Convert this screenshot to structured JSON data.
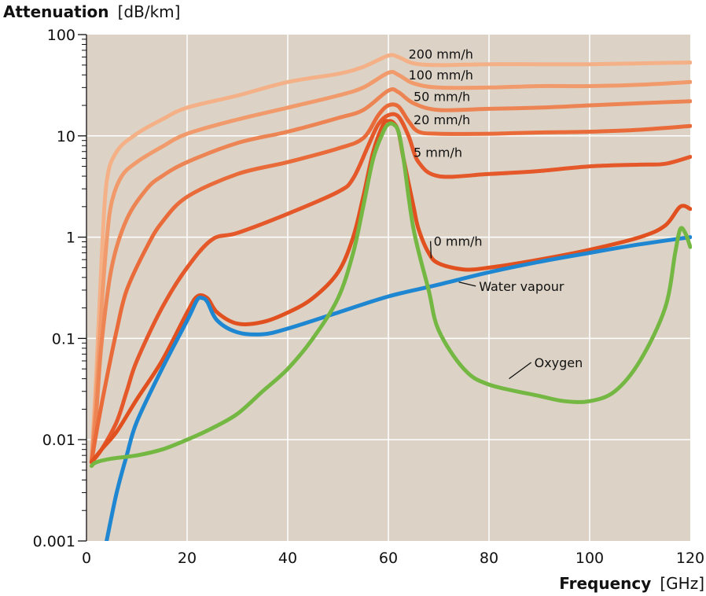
{
  "chart_data": {
    "type": "line",
    "y_scale": "log",
    "xlabel": {
      "bold": "Frequency",
      "unit": "[GHz]"
    },
    "ylabel": {
      "bold": "Attenuation",
      "unit": "[dB/km]"
    },
    "xlim": [
      0,
      120
    ],
    "ylim": [
      0.001,
      100
    ],
    "x_ticks": [
      "0",
      "20",
      "40",
      "60",
      "80",
      "100",
      "120"
    ],
    "y_ticks": [
      "0.001",
      "0.01",
      "0.1",
      "1",
      "10",
      "100"
    ],
    "grid": true,
    "colors": {
      "plot_bg": "#dcd3c6",
      "grid": "#ffffff",
      "rain_200": "#f4b188",
      "rain_100": "#f19a6c",
      "rain_50": "#ed8454",
      "rain_20": "#e96b3a",
      "rain_5": "#e4582a",
      "rain_0": "#e1501f",
      "oxygen": "#74b843",
      "water_vapour": "#1f87d1"
    },
    "series": [
      {
        "name": "200 mm/h",
        "color_key": "rain_200",
        "label_at": [
          64,
          58
        ],
        "points": [
          [
            1,
            0.006
          ],
          [
            2,
            0.05
          ],
          [
            3,
            0.6
          ],
          [
            4,
            3.5
          ],
          [
            6,
            7
          ],
          [
            10,
            10.5
          ],
          [
            15,
            14.5
          ],
          [
            20,
            19
          ],
          [
            30,
            25
          ],
          [
            40,
            34
          ],
          [
            50,
            41
          ],
          [
            55,
            48
          ],
          [
            60,
            62
          ],
          [
            62,
            60
          ],
          [
            65,
            52
          ],
          [
            70,
            50
          ],
          [
            80,
            51
          ],
          [
            90,
            51
          ],
          [
            100,
            51
          ],
          [
            110,
            52
          ],
          [
            120,
            53
          ]
        ]
      },
      {
        "name": "100 mm/h",
        "color_key": "rain_100",
        "label_at": [
          64,
          36
        ],
        "points": [
          [
            1,
            0.006
          ],
          [
            2,
            0.03
          ],
          [
            3,
            0.2
          ],
          [
            4,
            0.9
          ],
          [
            5,
            2.2
          ],
          [
            7,
            4
          ],
          [
            10,
            5.5
          ],
          [
            15,
            7.8
          ],
          [
            20,
            10.5
          ],
          [
            30,
            14.5
          ],
          [
            40,
            19
          ],
          [
            50,
            25
          ],
          [
            55,
            30
          ],
          [
            60,
            42
          ],
          [
            62,
            40
          ],
          [
            65,
            33
          ],
          [
            70,
            30
          ],
          [
            80,
            30
          ],
          [
            90,
            31
          ],
          [
            100,
            31
          ],
          [
            110,
            32
          ],
          [
            120,
            34
          ]
        ]
      },
      {
        "name": "50 mm/h",
        "color_key": "rain_50",
        "label_at": [
          65,
          22
        ],
        "points": [
          [
            1,
            0.006
          ],
          [
            2,
            0.02
          ],
          [
            3,
            0.09
          ],
          [
            5,
            0.5
          ],
          [
            8,
            1.5
          ],
          [
            12,
            3
          ],
          [
            15,
            4
          ],
          [
            20,
            5.5
          ],
          [
            30,
            8.5
          ],
          [
            40,
            11
          ],
          [
            50,
            15
          ],
          [
            55,
            18
          ],
          [
            60,
            28
          ],
          [
            62,
            27
          ],
          [
            65,
            21
          ],
          [
            70,
            18
          ],
          [
            80,
            18.5
          ],
          [
            90,
            19
          ],
          [
            100,
            20
          ],
          [
            110,
            21
          ],
          [
            120,
            22
          ]
        ]
      },
      {
        "name": "20 mm/h",
        "color_key": "rain_20",
        "label_at": [
          65,
          13
        ],
        "points": [
          [
            1,
            0.006
          ],
          [
            2,
            0.012
          ],
          [
            4,
            0.04
          ],
          [
            6,
            0.12
          ],
          [
            8,
            0.3
          ],
          [
            12,
            0.8
          ],
          [
            15,
            1.4
          ],
          [
            20,
            2.5
          ],
          [
            30,
            4.2
          ],
          [
            40,
            5.5
          ],
          [
            50,
            7.5
          ],
          [
            55,
            9.5
          ],
          [
            58,
            16
          ],
          [
            60,
            20
          ],
          [
            62,
            19.5
          ],
          [
            64,
            14
          ],
          [
            66,
            11
          ],
          [
            70,
            10.5
          ],
          [
            80,
            10.5
          ],
          [
            90,
            10.8
          ],
          [
            100,
            11
          ],
          [
            110,
            11.5
          ],
          [
            120,
            12.5
          ]
        ]
      },
      {
        "name": "5 mm/h",
        "color_key": "rain_5",
        "label_at": [
          65,
          6.2
        ],
        "points": [
          [
            1,
            0.006
          ],
          [
            3,
            0.008
          ],
          [
            6,
            0.015
          ],
          [
            8,
            0.03
          ],
          [
            10,
            0.06
          ],
          [
            15,
            0.2
          ],
          [
            20,
            0.5
          ],
          [
            25,
            0.95
          ],
          [
            30,
            1.1
          ],
          [
            40,
            1.7
          ],
          [
            50,
            2.8
          ],
          [
            53,
            3.8
          ],
          [
            56,
            8
          ],
          [
            58,
            13
          ],
          [
            60,
            16
          ],
          [
            62,
            15.5
          ],
          [
            64,
            10
          ],
          [
            66,
            5.5
          ],
          [
            70,
            4
          ],
          [
            80,
            4.2
          ],
          [
            90,
            4.5
          ],
          [
            100,
            5
          ],
          [
            110,
            5.2
          ],
          [
            115,
            5.3
          ],
          [
            120,
            6.2
          ]
        ]
      },
      {
        "name": "0 mm/h",
        "color_key": "rain_0",
        "label_at": [
          69,
          0.82
        ],
        "leader_to": [
          68.5,
          0.62
        ],
        "points": [
          [
            1,
            0.006
          ],
          [
            3,
            0.008
          ],
          [
            6,
            0.012
          ],
          [
            10,
            0.025
          ],
          [
            15,
            0.06
          ],
          [
            20,
            0.18
          ],
          [
            22,
            0.26
          ],
          [
            24,
            0.25
          ],
          [
            26,
            0.18
          ],
          [
            30,
            0.14
          ],
          [
            35,
            0.145
          ],
          [
            40,
            0.18
          ],
          [
            45,
            0.25
          ],
          [
            50,
            0.45
          ],
          [
            53,
            1
          ],
          [
            55,
            2.5
          ],
          [
            57,
            7
          ],
          [
            59,
            13
          ],
          [
            60,
            14
          ],
          [
            61,
            13.5
          ],
          [
            62,
            11
          ],
          [
            63,
            6
          ],
          [
            65,
            2
          ],
          [
            66,
            1.2
          ],
          [
            68,
            0.7
          ],
          [
            70,
            0.55
          ],
          [
            75,
            0.48
          ],
          [
            80,
            0.5
          ],
          [
            90,
            0.6
          ],
          [
            100,
            0.75
          ],
          [
            110,
            1.0
          ],
          [
            115,
            1.3
          ],
          [
            118,
            2.0
          ],
          [
            120,
            1.9
          ]
        ]
      },
      {
        "name": "Water vapour",
        "color_key": "water_vapour",
        "label_at": [
          78,
          0.295
        ],
        "leader_to": [
          74,
          0.36
        ],
        "points": [
          [
            4,
            0.001
          ],
          [
            6,
            0.003
          ],
          [
            8,
            0.007
          ],
          [
            10,
            0.015
          ],
          [
            15,
            0.05
          ],
          [
            20,
            0.15
          ],
          [
            22,
            0.24
          ],
          [
            23,
            0.25
          ],
          [
            24,
            0.23
          ],
          [
            26,
            0.15
          ],
          [
            30,
            0.115
          ],
          [
            35,
            0.11
          ],
          [
            40,
            0.125
          ],
          [
            50,
            0.18
          ],
          [
            60,
            0.26
          ],
          [
            70,
            0.34
          ],
          [
            80,
            0.45
          ],
          [
            90,
            0.57
          ],
          [
            100,
            0.7
          ],
          [
            110,
            0.85
          ],
          [
            120,
            1.0
          ]
        ]
      },
      {
        "name": "Oxygen",
        "color_key": "oxygen",
        "label_at": [
          89,
          0.052
        ],
        "leader_to": [
          84,
          0.04
        ],
        "points": [
          [
            1,
            0.0055
          ],
          [
            2,
            0.006
          ],
          [
            5,
            0.0065
          ],
          [
            10,
            0.007
          ],
          [
            15,
            0.008
          ],
          [
            20,
            0.01
          ],
          [
            25,
            0.013
          ],
          [
            30,
            0.018
          ],
          [
            35,
            0.03
          ],
          [
            40,
            0.05
          ],
          [
            45,
            0.1
          ],
          [
            50,
            0.25
          ],
          [
            53,
            0.7
          ],
          [
            55,
            2
          ],
          [
            57,
            6
          ],
          [
            59,
            11
          ],
          [
            60,
            13
          ],
          [
            61,
            13
          ],
          [
            62,
            11
          ],
          [
            63,
            6
          ],
          [
            65,
            1.2
          ],
          [
            68,
            0.3
          ],
          [
            70,
            0.12
          ],
          [
            75,
            0.05
          ],
          [
            80,
            0.035
          ],
          [
            90,
            0.027
          ],
          [
            95,
            0.024
          ],
          [
            100,
            0.024
          ],
          [
            105,
            0.03
          ],
          [
            110,
            0.06
          ],
          [
            115,
            0.2
          ],
          [
            117,
            0.7
          ],
          [
            118,
            1.2
          ],
          [
            119,
            1.1
          ],
          [
            120,
            0.8
          ]
        ]
      }
    ]
  }
}
